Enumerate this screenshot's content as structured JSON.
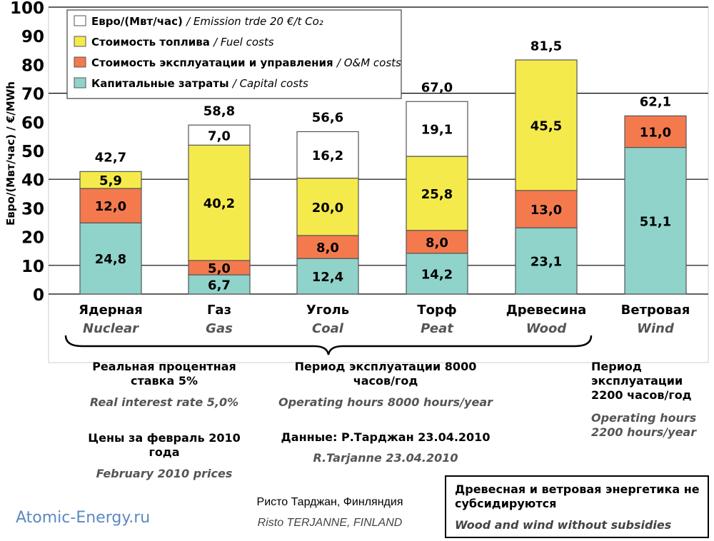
{
  "chart_data": {
    "type": "bar",
    "stacked": true,
    "ylabel": "Евро/(Мвт/час) / €/MWh",
    "ylim": [
      0,
      100
    ],
    "yticks": [
      0,
      10,
      20,
      30,
      40,
      50,
      60,
      70,
      80,
      90,
      100
    ],
    "grid": "y-lines at 10, 40, 70, 100",
    "categories": [
      "Ядерная",
      "Газ",
      "Уголь",
      "Торф",
      "Древесина",
      "Ветровая"
    ],
    "categories_en": [
      "Nuclear",
      "Gas",
      "Coal",
      "Peat",
      "Wood",
      "Wind"
    ],
    "series": [
      {
        "name": "Капитальные затраты",
        "name_en": "Capital costs",
        "color": "#8fd3cb",
        "values": [
          24.8,
          6.7,
          12.4,
          14.2,
          23.1,
          51.1
        ],
        "labels": [
          "24,8",
          "6,7",
          "12,4",
          "14,2",
          "23,1",
          "51,1"
        ]
      },
      {
        "name": "Стоимость эксплуатации и управления",
        "name_en": "O&M costs",
        "color": "#f47a4e",
        "values": [
          12.0,
          5.0,
          8.0,
          8.0,
          13.0,
          11.0
        ],
        "labels": [
          "12,0",
          "5,0",
          "8,0",
          "8,0",
          "13,0",
          "11,0"
        ]
      },
      {
        "name": "Стоимость топлива",
        "name_en": "Fuel costs",
        "color": "#f5ea4c",
        "values": [
          5.9,
          40.2,
          20.0,
          25.8,
          45.5,
          0
        ],
        "labels": [
          "5,9",
          "40,2",
          "20,0",
          "25,8",
          "45,5",
          ""
        ]
      },
      {
        "name": "Евро/(Мвт/час)",
        "name_en": "Emission trde 20 €/t Co₂",
        "color": "#ffffff",
        "values": [
          0,
          7.0,
          16.2,
          19.1,
          0,
          0
        ],
        "labels": [
          "",
          "7,0",
          "16,2",
          "19,1",
          "",
          ""
        ]
      }
    ],
    "totals": [
      42.7,
      58.8,
      56.6,
      67.0,
      81.5,
      62.1
    ],
    "total_labels": [
      "42,7",
      "58,8",
      "56,6",
      "67,0",
      "81,5",
      "62,1"
    ],
    "legend_placement": "top-left"
  },
  "notes": {
    "rate_ru": "Реальная процентная ставка 5%",
    "rate_en": "Real interest rate 5,0%",
    "hours_ru": "Период эксплуатации 8000 часов/год",
    "hours_en": "Operating hours 8000 hours/year",
    "wind_hours_ru": "Период эксплуатации 2200 часов/год",
    "wind_hours_en": "Operating hours 2200 hours/year",
    "prices_ru": "Цены за февраль 2010 года",
    "prices_en": "February 2010 prices",
    "data_ru": "Данные: Р.Тарджан 23.04.2010",
    "data_en": "R.Tarjanne 23.04.2010",
    "author_ru": "Ристо Тарджан, Финляндия",
    "author_en": "Risto TERJANNE, FINLAND",
    "subsidy_ru": "Древесная и ветровая энергетика не субсидируются",
    "subsidy_en": "Wood and wind without subsidies",
    "source": "Atomic-Energy.ru"
  }
}
